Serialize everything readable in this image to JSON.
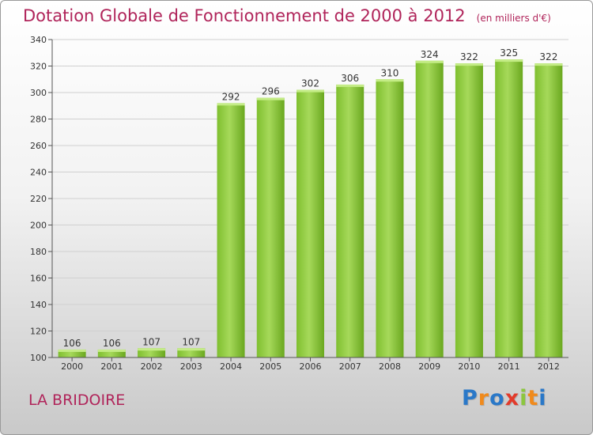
{
  "title": "Dotation Globale de Fonctionnement de 2000 à 2012",
  "unit_note": "(en milliers d'€)",
  "place": "LA BRIDOIRE",
  "logo": {
    "letters": [
      "P",
      "r",
      "o",
      "x",
      "i",
      "t",
      "i"
    ],
    "colors": [
      "#2a78c8",
      "#f08a1c",
      "#2a78c8",
      "#e23a2a",
      "#8cc63f",
      "#f08a1c",
      "#2a78c8"
    ]
  },
  "colors": {
    "bar_light": "#a6d95a",
    "bar_dark": "#6aa81f",
    "title": "#b0245a"
  },
  "chart_data": {
    "type": "bar",
    "categories": [
      "2000",
      "2001",
      "2002",
      "2003",
      "2004",
      "2005",
      "2006",
      "2007",
      "2008",
      "2009",
      "2010",
      "2011",
      "2012"
    ],
    "values": [
      106,
      106,
      107,
      107,
      292,
      296,
      302,
      306,
      310,
      324,
      322,
      325,
      322
    ],
    "ylim": [
      100,
      340
    ],
    "yticks": [
      100,
      120,
      140,
      160,
      180,
      200,
      220,
      240,
      260,
      280,
      300,
      320,
      340
    ],
    "grid": true,
    "legend": "none"
  }
}
